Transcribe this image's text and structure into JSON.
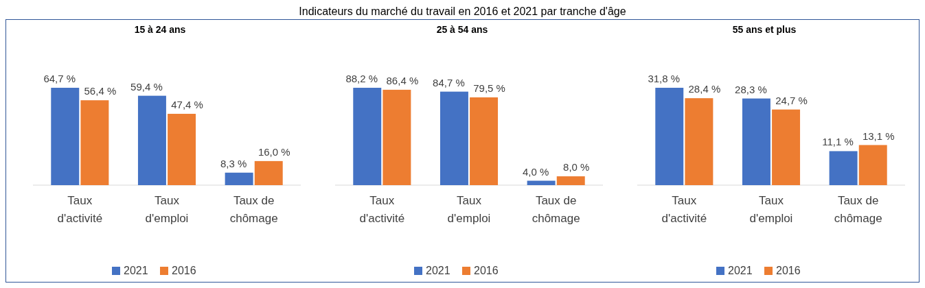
{
  "chart_data": [
    {
      "type": "bar",
      "title": "15 à 24 ans",
      "annotations": [
        "Indicateurs du marché du travail en 2016 et 2021 par tranche d'âge"
      ],
      "categories": [
        "Taux d'activité",
        "Taux d'emploi",
        "Taux de chômage"
      ],
      "legend": "bottom",
      "series": [
        {
          "name": "2021",
          "color": "#4472c4",
          "values": [
            64.7,
            59.4,
            8.3
          ],
          "value_labels": [
            "64,7 %",
            "59,4 %",
            "8,3 %"
          ]
        },
        {
          "name": "2016",
          "color": "#ed7d31",
          "values": [
            56.4,
            47.4,
            16.0
          ],
          "value_labels": [
            "56,4 %",
            "47,4 %",
            "16,0 %"
          ]
        }
      ]
    },
    {
      "type": "bar",
      "title": "25 à 54 ans",
      "categories": [
        "Taux d'activité",
        "Taux d'emploi",
        "Taux de chômage"
      ],
      "legend": "bottom",
      "series": [
        {
          "name": "2021",
          "color": "#4472c4",
          "values": [
            88.2,
            84.7,
            4.0
          ],
          "value_labels": [
            "88,2 %",
            "84,7 %",
            "4,0 %"
          ]
        },
        {
          "name": "2016",
          "color": "#ed7d31",
          "values": [
            86.4,
            79.5,
            8.0
          ],
          "value_labels": [
            "86,4 %",
            "79,5 %",
            "8,0 %"
          ]
        }
      ]
    },
    {
      "type": "bar",
      "title": "55 ans et plus",
      "categories": [
        "Taux d'activité",
        "Taux d'emploi",
        "Taux de chômage"
      ],
      "legend": "bottom",
      "series": [
        {
          "name": "2021",
          "color": "#4472c4",
          "values": [
            31.8,
            28.3,
            11.1
          ],
          "value_labels": [
            "31,8 %",
            "28,3 %",
            "11,1 %"
          ]
        },
        {
          "name": "2016",
          "color": "#ed7d31",
          "values": [
            28.4,
            24.7,
            13.1
          ],
          "value_labels": [
            "28,4 %",
            "24,7 %",
            "13,1 %"
          ]
        }
      ]
    }
  ]
}
